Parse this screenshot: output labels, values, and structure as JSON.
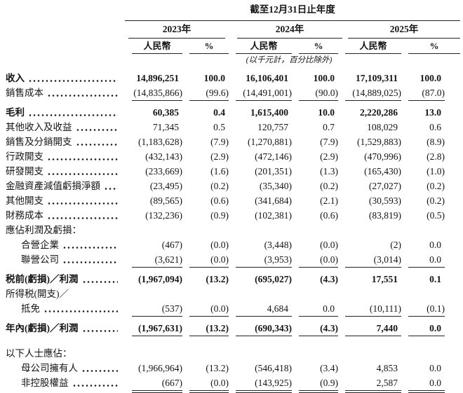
{
  "header": {
    "period_title": "截至12月31日止年度",
    "unit_note": "(以千元計，百分比除外)",
    "years": [
      {
        "label": "2023年",
        "col1": "人民幣",
        "col2": "%"
      },
      {
        "label": "2024年",
        "col1": "人民幣",
        "col2": "%"
      },
      {
        "label": "2025年",
        "col1": "人民幣",
        "col2": "%"
      }
    ]
  },
  "table": {
    "rows": [
      {
        "label": "收入",
        "bold": true,
        "dots": true,
        "values": [
          "14,896,251",
          "100.0",
          "16,106,401",
          "100.0",
          "17,109,311",
          "100.0"
        ]
      },
      {
        "label": "銷售成本",
        "dots": true,
        "rule": true,
        "values": [
          "(14,835,866)",
          "(99.6)",
          "(14,491,001)",
          "(90.0)",
          "(14,889,025)",
          "(87.0)"
        ]
      },
      {
        "label": "毛利",
        "bold": true,
        "dots": true,
        "gap": 7,
        "values": [
          "60,385",
          "0.4",
          "1,615,400",
          "10.0",
          "2,220,286",
          "13.0"
        ]
      },
      {
        "label": "其他收入及收益",
        "dots": true,
        "values": [
          "71,345",
          "0.5",
          "120,757",
          "0.7",
          "108,029",
          "0.6"
        ]
      },
      {
        "label": "銷售及分銷開支",
        "dots": true,
        "values": [
          "(1,183,628)",
          "(7.9)",
          "(1,270,881)",
          "(7.9)",
          "(1,529,883)",
          "(8.9)"
        ]
      },
      {
        "label": "行政開支",
        "dots": true,
        "values": [
          "(432,143)",
          "(2.9)",
          "(472,146)",
          "(2.9)",
          "(470,996)",
          "(2.8)"
        ]
      },
      {
        "label": "研發開支",
        "dots": true,
        "values": [
          "(233,669)",
          "(1.6)",
          "(201,351)",
          "(1.3)",
          "(165,430)",
          "(1.0)"
        ]
      },
      {
        "label": "金融資產減值虧損淨額",
        "dots": true,
        "values": [
          "(23,495)",
          "(0.2)",
          "(35,340)",
          "(0.2)",
          "(27,027)",
          "(0.2)"
        ]
      },
      {
        "label": "其他開支",
        "dots": true,
        "values": [
          "(89,565)",
          "(0.6)",
          "(341,684)",
          "(2.1)",
          "(30,593)",
          "(0.2)"
        ]
      },
      {
        "label": "財務成本",
        "dots": true,
        "values": [
          "(132,236)",
          "(0.9)",
          "(102,381)",
          "(0.6)",
          "(83,819)",
          "(0.5)"
        ]
      },
      {
        "label": "應佔利潤及虧損："
      },
      {
        "label": "合營企業",
        "indent": true,
        "dots": true,
        "values": [
          "(467)",
          "(0.0)",
          "(3,448)",
          "(0.0)",
          "(2)",
          "0.0"
        ]
      },
      {
        "label": "聯營公司",
        "indent": true,
        "dots": true,
        "rule": true,
        "values": [
          "(3,621)",
          "(0.0)",
          "(3,953)",
          "(0.0)",
          "(3,014)",
          "0.0"
        ]
      },
      {
        "label": "税前(虧損)／利潤",
        "bold": true,
        "dots": true,
        "gap": 7,
        "values": [
          "(1,967,094)",
          "(13.2)",
          "(695,027)",
          "(4.3)",
          "17,551",
          "0.1"
        ]
      },
      {
        "label": "所得税(開支)／"
      },
      {
        "label": "抵免",
        "indent": true,
        "dots": true,
        "rule": true,
        "values": [
          "(537)",
          "(0.0)",
          "4,684",
          "0.0",
          "(10,111)",
          "(0.1)"
        ]
      },
      {
        "label": "年內(虧損)／利潤",
        "bold": true,
        "dots": true,
        "gap": 7,
        "rule": true,
        "values": [
          "(1,967,631)",
          "(13.2)",
          "(690,343)",
          "(4.3)",
          "7,440",
          "0.0"
        ]
      },
      {
        "label": "以下人士應佔：",
        "gap": 14
      },
      {
        "label": "母公司擁有人",
        "indent": true,
        "dots": true,
        "values": [
          "(1,966,964)",
          "(13.2)",
          "(546,418)",
          "(3.4)",
          "4,853",
          "0.0"
        ]
      },
      {
        "label": "非控股權益",
        "indent": true,
        "dots": true,
        "dbl": true,
        "values": [
          "(667)",
          "(0.0)",
          "(143,925)",
          "(0.9)",
          "2,587",
          "0.0"
        ]
      }
    ]
  }
}
